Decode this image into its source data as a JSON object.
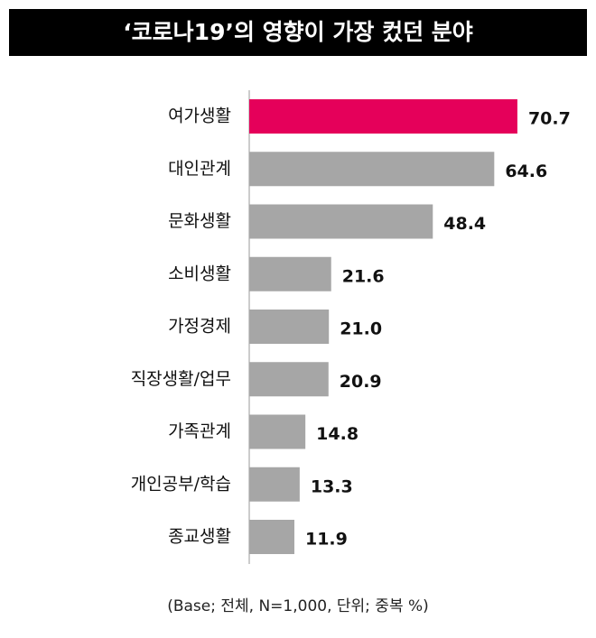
{
  "chart_data": {
    "type": "bar",
    "orientation": "horizontal",
    "title": "‘코로나19’의 영향이 가장 컸던 분야",
    "categories": [
      "여가생활",
      "대인관계",
      "문화생활",
      "소비생활",
      "가정경제",
      "직장생활/업무",
      "가족관계",
      "개인공부/학습",
      "종교생활"
    ],
    "values": [
      70.7,
      64.6,
      48.4,
      21.6,
      21.0,
      20.9,
      14.8,
      13.3,
      11.9
    ],
    "value_labels": [
      "70.7",
      "64.6",
      "48.4",
      "21.6",
      "21.0",
      "20.9",
      "14.8",
      "13.3",
      "11.9"
    ],
    "colors": [
      "#e5005a",
      "#a6a6a6",
      "#a6a6a6",
      "#a6a6a6",
      "#a6a6a6",
      "#a6a6a6",
      "#a6a6a6",
      "#a6a6a6",
      "#a6a6a6"
    ],
    "xlim": [
      0,
      80
    ],
    "note": "(Base; 전체, N=1,000, 단위; 중복 %)"
  }
}
